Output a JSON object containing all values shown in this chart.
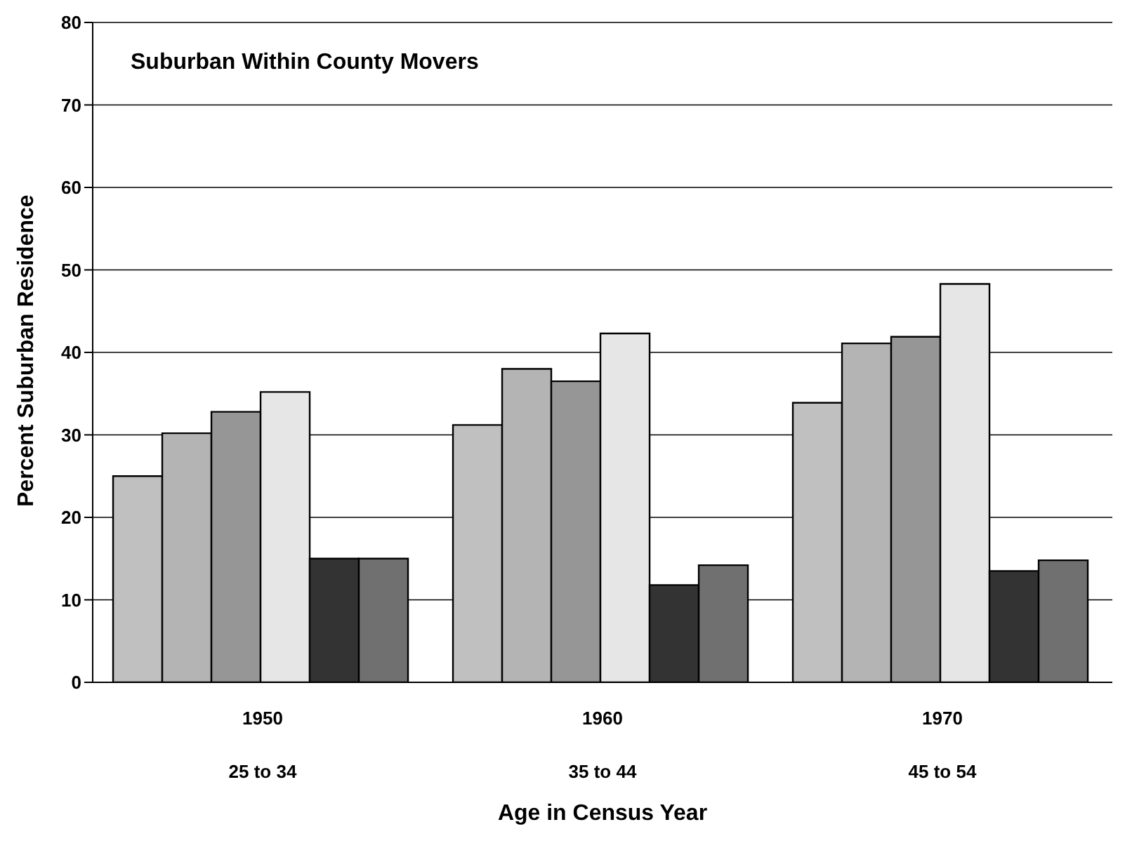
{
  "chart_data": {
    "type": "bar",
    "title": "Suburban Within County Movers",
    "xlabel": "Age in Census Year",
    "ylabel": "Percent Suburban Residence",
    "categories": [
      "1950\n25 to 34",
      "1960\n35 to 44",
      "1970\n45 to 54"
    ],
    "series": [
      {
        "color": "#c0c0c0",
        "values": [
          25,
          31.2,
          33.9
        ]
      },
      {
        "color": "#b4b4b4",
        "values": [
          30.2,
          38,
          41.1
        ]
      },
      {
        "color": "#969696",
        "values": [
          32.8,
          36.5,
          41.9
        ]
      },
      {
        "color": "#e6e6e6",
        "values": [
          35.2,
          42.3,
          48.3
        ]
      },
      {
        "color": "#333333",
        "values": [
          15,
          11.8,
          13.5
        ]
      },
      {
        "color": "#707070",
        "values": [
          15,
          14.2,
          14.8
        ]
      }
    ],
    "ylim": [
      0,
      80
    ],
    "yticks": [
      0,
      10,
      20,
      30,
      40,
      50,
      60,
      70,
      80
    ],
    "grid": "y",
    "legend": false
  }
}
